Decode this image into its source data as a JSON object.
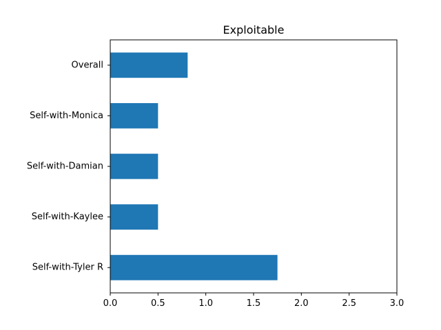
{
  "chart_data": {
    "type": "bar",
    "orientation": "horizontal",
    "title": "Exploitable",
    "xlabel": "",
    "ylabel": "",
    "categories": [
      "Overall",
      "Self-with-Monica",
      "Self-with-Damian",
      "Self-with-Kaylee",
      "Self-with-Tyler R"
    ],
    "values": [
      0.81,
      0.5,
      0.5,
      0.5,
      1.75
    ],
    "xlim": [
      0,
      3
    ],
    "xticks": [
      "0.0",
      "0.5",
      "1.0",
      "1.5",
      "2.0",
      "2.5",
      "3.0"
    ],
    "grid": false,
    "bar_color": "#1f77b4"
  }
}
